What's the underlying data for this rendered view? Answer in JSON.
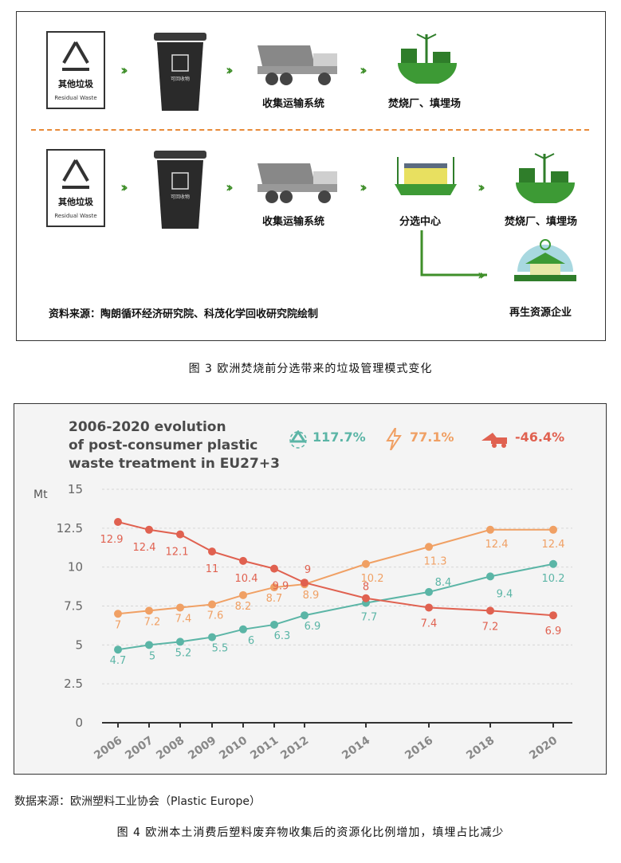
{
  "figure3": {
    "row1": {
      "symbol_cn": "其他垃圾",
      "symbol_en": "Residual Waste",
      "bin_label": "可回收物",
      "transport": "收集运输系统",
      "final": "焚烧厂、填埋场"
    },
    "row2": {
      "symbol_cn": "其他垃圾",
      "symbol_en": "Residual Waste",
      "bin_label": "可回收物",
      "transport": "收集运输系统",
      "center": "分选中心",
      "final": "焚烧厂、填埋场",
      "recycle": "再生资源企业"
    },
    "source": "资料来源：陶朗循环经济研究院、科茂化学回收研究院绘制",
    "caption": "图 3   欧洲焚烧前分选带来的垃圾管理模式变化"
  },
  "chart_data": {
    "type": "line",
    "title_lines": [
      "2006-2020 evolution",
      "of post-consumer plastic",
      "waste treatment in EU27+3"
    ],
    "ylabel": "Mt",
    "ylim": [
      0,
      15
    ],
    "yticks": [
      "0",
      "2.5",
      "5",
      "7.5",
      "10",
      "12.5",
      "15"
    ],
    "x": [
      "2006",
      "2007",
      "2008",
      "2009",
      "2010",
      "2011",
      "2012",
      "2014",
      "2016",
      "2018",
      "2020"
    ],
    "series": [
      {
        "stat": "117.7%",
        "color": "#5bb5a6",
        "icon": "recycling-icon",
        "values": [
          4.7,
          5,
          5.2,
          5.5,
          6,
          6.3,
          6.9,
          7.7,
          8.4,
          9.4,
          10.2
        ]
      },
      {
        "stat": "77.1%",
        "color": "#f0a064",
        "icon": "energy-bolt-icon",
        "values": [
          7,
          7.2,
          7.4,
          7.6,
          8.2,
          8.7,
          8.9,
          10.2,
          11.3,
          12.4,
          12.4
        ]
      },
      {
        "stat": "-46.4%",
        "color": "#e06150",
        "icon": "landfill-truck-icon",
        "values": [
          12.9,
          12.4,
          12.1,
          11,
          10.4,
          9.9,
          9,
          8,
          7.4,
          7.2,
          6.9
        ]
      }
    ],
    "grid": true
  },
  "figure4": {
    "source": "数据来源：欧洲塑料工业协会（Plastic Europe）",
    "caption": "图 4  欧洲本土消费后塑料废弃物收集后的资源化比例增加，填埋占比减少"
  }
}
